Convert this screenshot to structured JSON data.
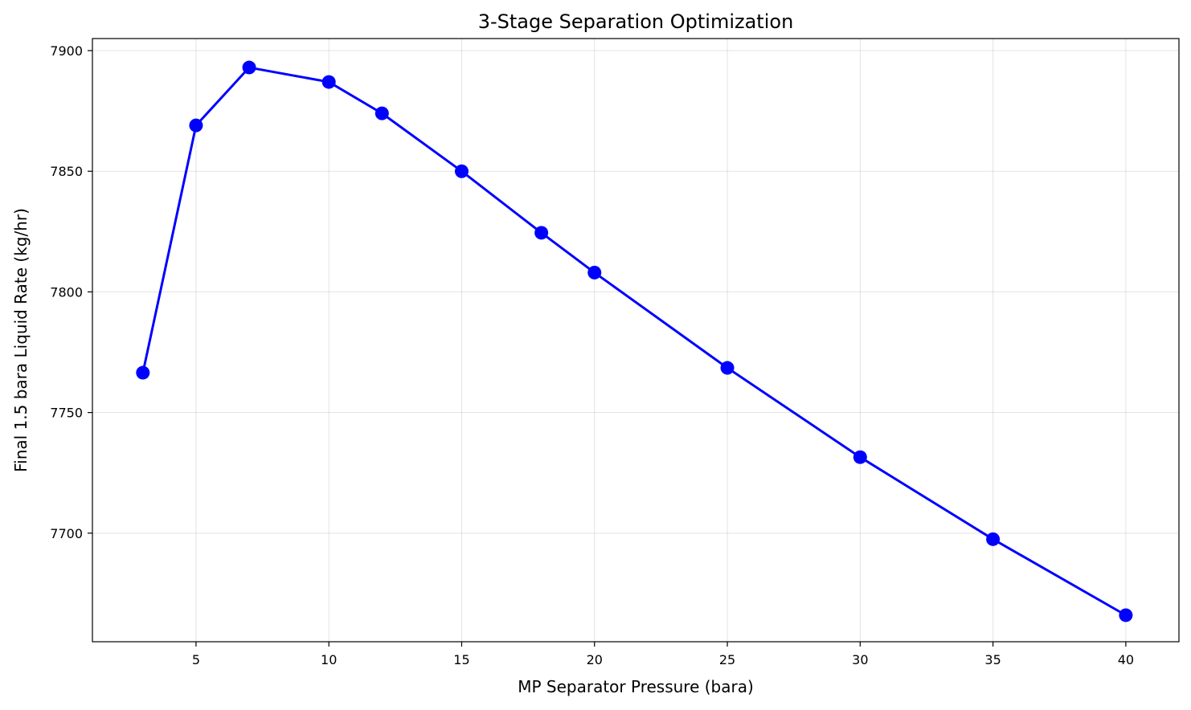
{
  "chart_data": {
    "type": "line",
    "title": "3-Stage Separation Optimization",
    "xlabel": "MP Separator Pressure (bara)",
    "ylabel": "Final 1.5 bara Liquid Rate (kg/hr)",
    "xlim": [
      1.1,
      42.0
    ],
    "ylim": [
      7655,
      7905
    ],
    "x_ticks": [
      5,
      10,
      15,
      20,
      25,
      30,
      35,
      40
    ],
    "y_ticks": [
      7700,
      7750,
      7800,
      7850,
      7900
    ],
    "grid": true,
    "series": [
      {
        "color": "#0000ff",
        "marker": "circle",
        "x": [
          3,
          5,
          7,
          10,
          12,
          15,
          18,
          20,
          25,
          30,
          35,
          40
        ],
        "y": [
          7766.5,
          7869,
          7893,
          7887,
          7874,
          7850,
          7824.5,
          7808,
          7768.5,
          7731.5,
          7697.5,
          7666
        ]
      }
    ]
  }
}
